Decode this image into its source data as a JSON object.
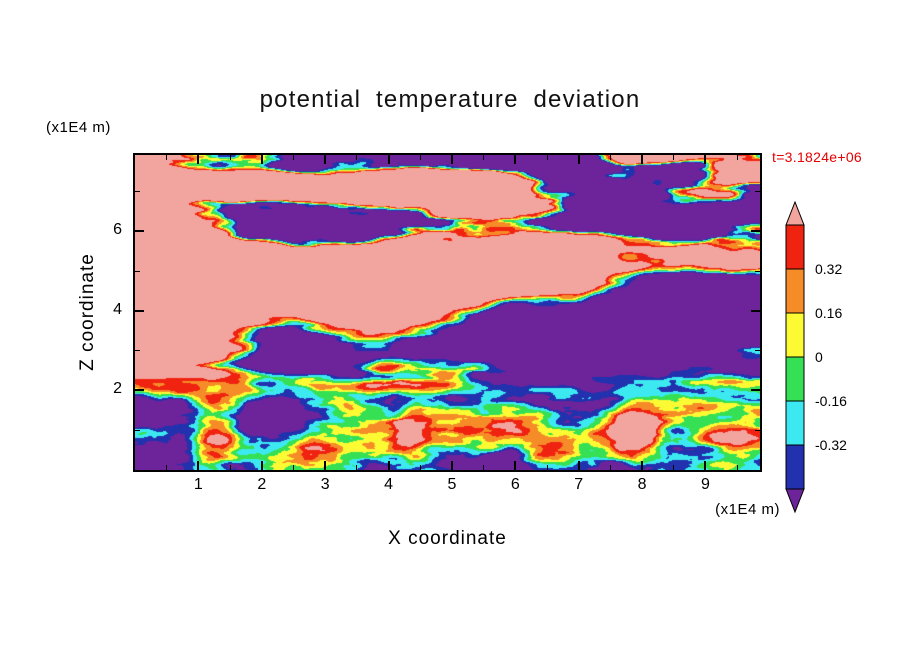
{
  "title": "potential temperature deviation",
  "time_label": "t=3.1824e+06",
  "axes": {
    "x": {
      "label": "X coordinate",
      "unit": "(x1E4 m)",
      "min": 0,
      "max": 9.86,
      "major_ticks": [
        1,
        2,
        3,
        4,
        5,
        6,
        7,
        8,
        9
      ],
      "minor_step": 0.5
    },
    "z": {
      "label": "Z coordinate",
      "unit": "(x1E4 m)",
      "min": 0,
      "max": 7.92,
      "major_ticks": [
        2,
        4,
        6
      ],
      "minor_ticks": [
        1,
        3,
        5,
        7
      ]
    }
  },
  "colorbar": {
    "tick_labels": [
      "0.32",
      "0.16",
      "0",
      "-0.16",
      "-0.32"
    ],
    "levels": [
      -0.48,
      -0.32,
      -0.16,
      0,
      0.16,
      0.32,
      0.48
    ],
    "palette_low_to_high": [
      "#6D2399",
      "#2231AE",
      "#3CE9F0",
      "#36E055",
      "#FCFA33",
      "#F68C28",
      "#F02311",
      "#F2A49E"
    ]
  },
  "colors": {
    "frame": "#000000",
    "text": "#000000",
    "time_text": "#E60000",
    "background": "#FFFFFF"
  },
  "chart_data": {
    "type": "heatmap",
    "title": "potential temperature deviation",
    "xlabel": "X coordinate (x1E4 m)",
    "ylabel": "Z coordinate (x1E4 m)",
    "x_range": [
      0,
      9.86
    ],
    "z_range": [
      0,
      7.92
    ],
    "x_ticks": [
      1,
      2,
      3,
      4,
      5,
      6,
      7,
      8,
      9
    ],
    "z_ticks": [
      2,
      4,
      6
    ],
    "annotation": "t=3.1824e+06",
    "legend_position": "right-colorbar with pointed out-of-range arrows",
    "contour_levels": [
      -0.48,
      -0.32,
      -0.16,
      0,
      0.16,
      0.32,
      0.48
    ],
    "colorbar_tick_labels": [
      "0.32",
      "0.16",
      "0",
      "-0.16",
      "-0.32"
    ],
    "palette_low_to_high": [
      "#6D2399",
      "#2231AE",
      "#3CE9F0",
      "#36E055",
      "#FCFA33",
      "#F68C28",
      "#F02311",
      "#F2A49E"
    ],
    "field_summary": [
      "Upper region (z > 2.5 x1E4 m): large-amplitude layered structure; salmon-pink areas (deviation > +0.48) interleaved with dark-purple horizontal streaks (deviation < -0.48), separated by thin red/orange/yellow/green/cyan contour fringes",
      "Middle band near z = 4.5-5.5: predominantly pink with red-fringed boundaries and isolated purple lenses; large purple mass at center-right near z = 3-4",
      "Shear band near z = 2-2.5: thin multicoloured horizontal striations",
      "Boundary layer (z < 2): turbulent green/cyan field (deviation about -0.3 to 0) with yellow patches, rising orange-red plumes, and deep navy pockets including the lower-left corner"
    ],
    "render": {
      "blend": [
        1.6,
        2.45
      ],
      "low_bias": -0.16,
      "up_bias": 0.18,
      "stripe_z": 2.1,
      "stripe_w": 0.55,
      "stripe_amp": 0.2,
      "slabs": [
        {
          "x": 5.0,
          "z": 7.7,
          "wx": 4.5,
          "wz": 0.6,
          "a": -1.6
        },
        {
          "x": 1.9,
          "z": 7.15,
          "wx": 1.4,
          "wz": 0.45,
          "a": 1.3
        },
        {
          "x": 3.5,
          "z": 6.0,
          "wx": 2.0,
          "wz": 0.42,
          "a": -1.5
        },
        {
          "x": 8.7,
          "z": 6.25,
          "wx": 1.5,
          "wz": 0.5,
          "a": -1.2
        },
        {
          "x": 4.8,
          "z": 4.95,
          "wx": 4.6,
          "wz": 0.7,
          "a": 1.8
        },
        {
          "x": 6.1,
          "z": 3.3,
          "wx": 2.3,
          "wz": 0.75,
          "a": -2.1
        },
        {
          "x": 2.6,
          "z": 3.05,
          "wx": 1.0,
          "wz": 0.55,
          "a": -1.2
        },
        {
          "x": 1.0,
          "z": 4.2,
          "wx": 1.1,
          "wz": 0.5,
          "a": 1.1
        },
        {
          "x": 8.3,
          "z": 4.35,
          "wx": 0.85,
          "wz": 0.4,
          "a": -0.9
        }
      ],
      "plumes": [
        {
          "x": 1.25,
          "z": 0.9,
          "wx": 0.35,
          "wz": 0.9,
          "a": 0.95
        },
        {
          "x": 2.9,
          "z": 0.5,
          "wx": 0.5,
          "wz": 0.5,
          "a": 0.8
        },
        {
          "x": 4.35,
          "z": 0.95,
          "wx": 0.3,
          "wz": 0.8,
          "a": 0.7
        },
        {
          "x": 6.4,
          "z": 0.3,
          "wx": 0.45,
          "wz": 0.4,
          "a": 0.75
        },
        {
          "x": 7.9,
          "z": 0.95,
          "wx": 0.4,
          "wz": 0.9,
          "a": 0.9
        }
      ],
      "pockets": [
        {
          "x": 0.2,
          "z": 0.5,
          "wx": 0.8,
          "wz": 0.8,
          "a": -0.8
        },
        {
          "x": 5.85,
          "z": 0.3,
          "wx": 0.6,
          "wz": 0.45,
          "a": -0.55
        },
        {
          "x": 8.6,
          "z": 0.85,
          "wx": 0.5,
          "wz": 0.6,
          "a": -0.6
        },
        {
          "x": 6.9,
          "z": 1.2,
          "wx": 0.5,
          "wz": 0.4,
          "a": -0.45
        }
      ]
    }
  }
}
